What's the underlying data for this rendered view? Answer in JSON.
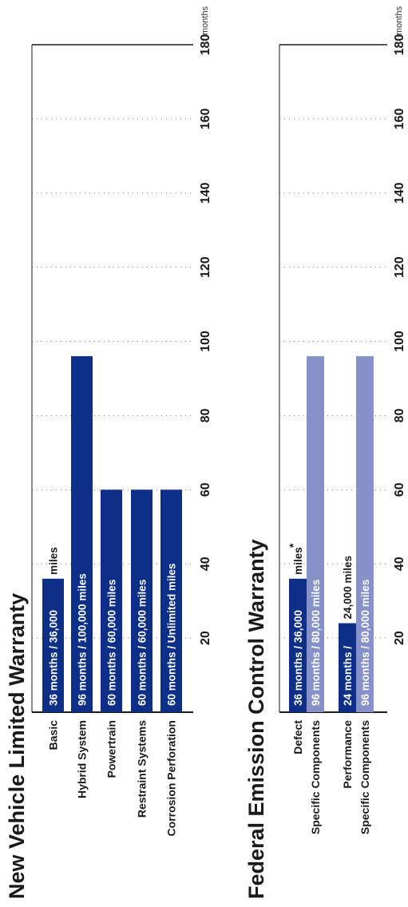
{
  "chart_data": [
    {
      "type": "bar",
      "title": "New Vehicle Limited Warranty",
      "unit_label": "months",
      "xlim": [
        0,
        180
      ],
      "ticks": [
        20,
        40,
        60,
        80,
        100,
        120,
        140,
        160,
        180
      ],
      "categories": [
        "Basic",
        "Hybrid System",
        "Powertrain",
        "Restraint Systems",
        "Corrosion Perforation"
      ],
      "values": [
        36,
        96,
        60,
        60,
        60
      ],
      "bar_labels": [
        {
          "inside": "36 months  /  36,000",
          "after": "miles"
        },
        {
          "inside": "96 months / 100,000 miles",
          "after": ""
        },
        {
          "inside": "60 months  /  60,000 miles",
          "after": ""
        },
        {
          "inside": "60 months  /  60,000 miles",
          "after": ""
        },
        {
          "inside": "60 months  /  Unlimited miles",
          "after": ""
        }
      ],
      "colors": [
        "#0d2f87",
        "#0d2f87",
        "#0d2f87",
        "#0d2f87",
        "#0d2f87"
      ],
      "grid": "dotted"
    },
    {
      "type": "bar",
      "title": "Federal Emission Control Warranty",
      "unit_label": "months",
      "xlim": [
        0,
        180
      ],
      "ticks": [
        20,
        40,
        60,
        80,
        100,
        120,
        140,
        160,
        180
      ],
      "categories": [
        {
          "line1": "Defect",
          "line2": "Specific Components"
        },
        {
          "line1": "Performance",
          "line2": "Specific Components"
        }
      ],
      "series": [
        {
          "values": [
            36,
            24
          ],
          "color": "#0d2f87",
          "bar_labels": [
            {
              "inside": "36 months  /  36,000",
              "after": "miles",
              "mark": "*"
            },
            {
              "inside": "24 months  /",
              "after": "24,000 miles",
              "mark": ""
            }
          ]
        },
        {
          "values": [
            96,
            96
          ],
          "color": "#8591c8",
          "bar_labels": [
            {
              "inside": "96 months  /  80,000 miles",
              "after": "",
              "mark": ""
            },
            {
              "inside": "96 months  /  80,000 miles",
              "after": "",
              "mark": ""
            }
          ]
        }
      ],
      "grid": "dotted"
    }
  ]
}
